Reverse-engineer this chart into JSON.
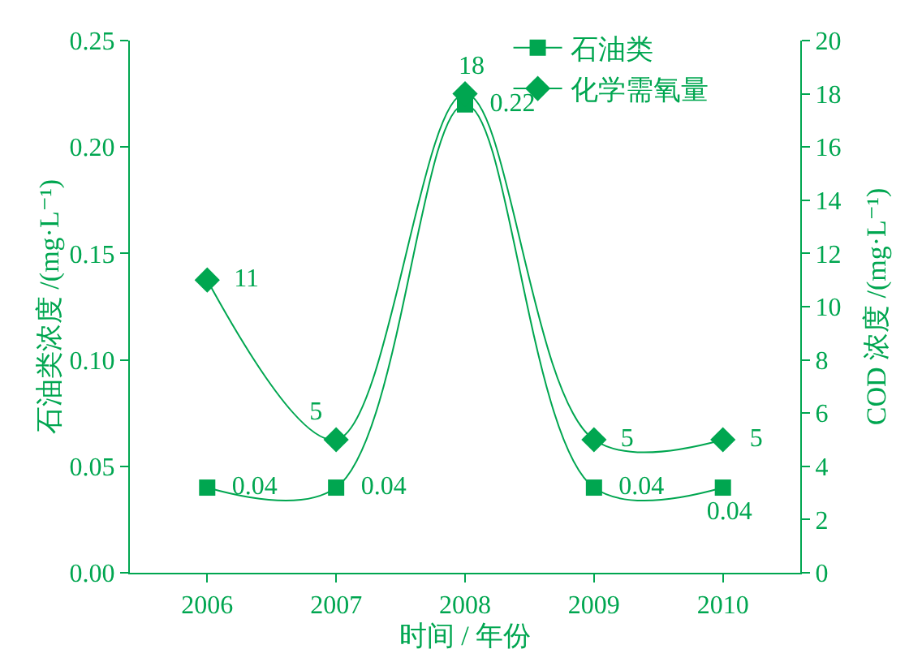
{
  "chart_data": {
    "type": "line",
    "xlabel": "时间 / 年份",
    "ylabel": "石油类浓度 /(mg·L⁻¹)",
    "y2label": "COD 浓度 /(mg·L⁻¹)",
    "categories": [
      "2006",
      "2007",
      "2008",
      "2009",
      "2010"
    ],
    "series": [
      {
        "name": "石油类",
        "color": "#00a650",
        "values": [
          0.04,
          0.04,
          0.22,
          0.04,
          0.04
        ],
        "marker": "square"
      },
      {
        "name": "化学需氧量",
        "color": "#00a650",
        "values": [
          11,
          5,
          18,
          5,
          5
        ],
        "marker": "diamond",
        "axis": "y2"
      }
    ],
    "ylim": [
      0,
      0.25
    ],
    "yticks": [
      {
        "value": 0,
        "label": "0.00"
      },
      0.05,
      {
        "value": 0.1,
        "label": "0.10"
      },
      0.15,
      {
        "value": 0.2,
        "label": "0.20"
      },
      0.25
    ],
    "y2lim": [
      0,
      20
    ],
    "y2ticks": [
      0,
      2,
      4,
      6,
      8,
      10,
      12,
      14,
      16,
      18,
      20
    ],
    "data_labels": true,
    "legend": "top",
    "grid": false,
    "line_style": "solid"
  }
}
